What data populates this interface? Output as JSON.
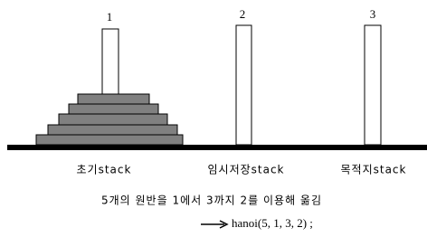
{
  "pegs": [
    {
      "label": "1",
      "caption": "초기stack"
    },
    {
      "label": "2",
      "caption": "임시저장stack"
    },
    {
      "label": "3",
      "caption": "목적지stack"
    }
  ],
  "description": "5개의 원반을 1에서 3까지 2를 이용해 옮김",
  "call": "hanoi(5, 1, 3, 2) ;"
}
